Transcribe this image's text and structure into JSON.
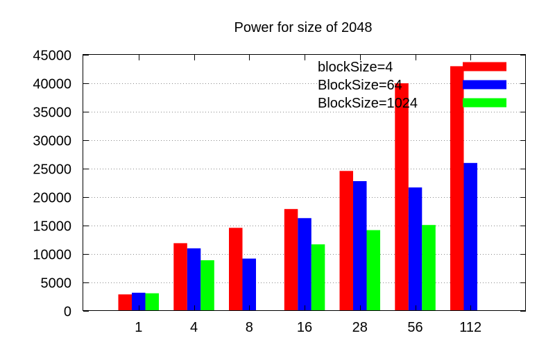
{
  "chart_data": {
    "type": "bar",
    "title": "Power for size of 2048",
    "xlabel": "",
    "ylabel": "",
    "categories": [
      "1",
      "4",
      "8",
      "16",
      "28",
      "56",
      "112"
    ],
    "ylim": [
      0,
      45000
    ],
    "yticks": [
      0,
      5000,
      10000,
      15000,
      20000,
      25000,
      30000,
      35000,
      40000,
      45000
    ],
    "grid": true,
    "legend_position": "top-right",
    "series": [
      {
        "name": "blockSize=4",
        "color": "#ff0000",
        "values": [
          2900,
          11900,
          14600,
          17900,
          24600,
          40000,
          43000
        ]
      },
      {
        "name": "BlockSize=64",
        "color": "#0000ff",
        "values": [
          3200,
          11000,
          9200,
          16300,
          22800,
          21700,
          26000
        ]
      },
      {
        "name": "BlockSize=1024",
        "color": "#00ff00",
        "values": [
          3100,
          8900,
          null,
          11700,
          14200,
          15100,
          null
        ]
      }
    ]
  }
}
